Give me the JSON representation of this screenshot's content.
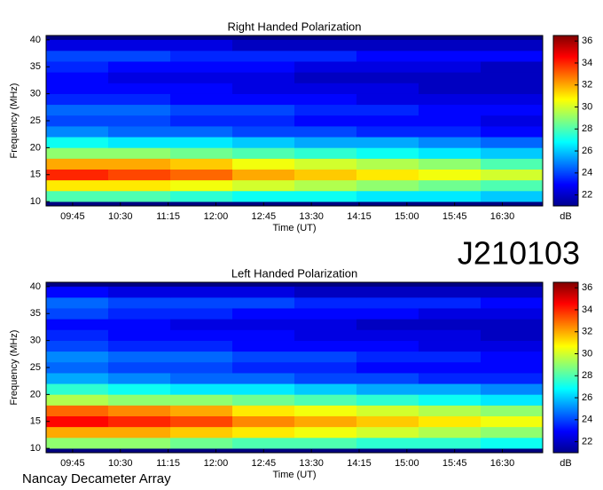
{
  "label": "J210103",
  "footer": "Nancay Decameter Array",
  "chart_data": [
    {
      "type": "heatmap",
      "title": "Right Handed Polarization",
      "xlabel": "Time (UT)",
      "ylabel": "Frequency (MHz)",
      "colorbar_label": "dB",
      "colormap": "jet",
      "xlim": [
        560,
        1028
      ],
      "ylim": [
        9.2,
        40.8
      ],
      "clim": [
        21,
        36.5
      ],
      "xticks": [
        {
          "value": 585,
          "label": "09:45"
        },
        {
          "value": 630,
          "label": "10:30"
        },
        {
          "value": 675,
          "label": "11:15"
        },
        {
          "value": 720,
          "label": "12:00"
        },
        {
          "value": 765,
          "label": "12:45"
        },
        {
          "value": 810,
          "label": "13:30"
        },
        {
          "value": 855,
          "label": "14:15"
        },
        {
          "value": 900,
          "label": "15:00"
        },
        {
          "value": 945,
          "label": "15:45"
        },
        {
          "value": 990,
          "label": "16:30"
        }
      ],
      "yticks": [
        10,
        15,
        20,
        25,
        30,
        35,
        40
      ],
      "cticks": [
        22,
        24,
        26,
        28,
        30,
        32,
        34,
        36
      ],
      "x_edges": [
        560,
        618.5,
        677,
        735.5,
        794,
        852.5,
        911,
        969.5,
        1028
      ],
      "y_edges": [
        10,
        12,
        14,
        16,
        18,
        20,
        22,
        24,
        26,
        28,
        30,
        32,
        34,
        36,
        38,
        40
      ],
      "z": [
        [
          28,
          28,
          27.5,
          27,
          27,
          26.5,
          26.5,
          26
        ],
        [
          31,
          31,
          30.5,
          30,
          29.5,
          29,
          28.5,
          28
        ],
        [
          34,
          33.5,
          33,
          32,
          31.5,
          31,
          30.5,
          30
        ],
        [
          32,
          32,
          31.5,
          30.5,
          30,
          29.5,
          29,
          28
        ],
        [
          29,
          29,
          28.5,
          28,
          27.5,
          27,
          26.5,
          26
        ],
        [
          27,
          26.5,
          26.5,
          26,
          25.5,
          25.5,
          25,
          24.5
        ],
        [
          25,
          24.5,
          24.5,
          24,
          24,
          23.5,
          23.5,
          23
        ],
        [
          24,
          24,
          23.5,
          23.5,
          23,
          23,
          23,
          22.5
        ],
        [
          24.5,
          24.5,
          24,
          24,
          23.5,
          23.5,
          23,
          23
        ],
        [
          23.5,
          23.5,
          23,
          23,
          23,
          22.5,
          22.5,
          22.5
        ],
        [
          23,
          23,
          23,
          22.5,
          22.5,
          22.5,
          22,
          22
        ],
        [
          23,
          22.5,
          22.5,
          22.5,
          22,
          22,
          22,
          22
        ],
        [
          23.5,
          23,
          23,
          23,
          22.5,
          22.5,
          22.5,
          22
        ],
        [
          24,
          24,
          23.5,
          23.5,
          23.5,
          23,
          23,
          23
        ],
        [
          22.5,
          22.5,
          22.5,
          22,
          22,
          22,
          22,
          22
        ]
      ]
    },
    {
      "type": "heatmap",
      "title": "Left Handed Polarization",
      "xlabel": "Time (UT)",
      "ylabel": "Frequency (MHz)",
      "colorbar_label": "dB",
      "colormap": "jet",
      "xlim": [
        560,
        1028
      ],
      "ylim": [
        9.2,
        40.8
      ],
      "clim": [
        21,
        36.5
      ],
      "xticks": [
        {
          "value": 585,
          "label": "09:45"
        },
        {
          "value": 630,
          "label": "10:30"
        },
        {
          "value": 675,
          "label": "11:15"
        },
        {
          "value": 720,
          "label": "12:00"
        },
        {
          "value": 765,
          "label": "12:45"
        },
        {
          "value": 810,
          "label": "13:30"
        },
        {
          "value": 855,
          "label": "14:15"
        },
        {
          "value": 900,
          "label": "15:00"
        },
        {
          "value": 945,
          "label": "15:45"
        },
        {
          "value": 990,
          "label": "16:30"
        }
      ],
      "yticks": [
        10,
        15,
        20,
        25,
        30,
        35,
        40
      ],
      "cticks": [
        22,
        24,
        26,
        28,
        30,
        32,
        34,
        36
      ],
      "x_edges": [
        560,
        618.5,
        677,
        735.5,
        794,
        852.5,
        911,
        969.5,
        1028
      ],
      "y_edges": [
        10,
        12,
        14,
        16,
        18,
        20,
        22,
        24,
        26,
        28,
        30,
        32,
        34,
        36,
        38,
        40
      ],
      "z": [
        [
          29,
          29,
          28.5,
          28,
          28,
          27.5,
          27.5,
          27
        ],
        [
          32,
          32,
          31.5,
          31,
          30.5,
          30,
          29.5,
          29
        ],
        [
          34.5,
          34,
          33.5,
          32.5,
          32,
          31.5,
          31,
          30.5
        ],
        [
          33,
          32.5,
          32,
          31,
          30.5,
          30,
          29.5,
          29
        ],
        [
          29.5,
          29,
          29,
          28.5,
          28,
          27.5,
          27,
          26.5
        ],
        [
          27.5,
          27,
          26.5,
          26.5,
          26,
          25.5,
          25.5,
          25
        ],
        [
          25.5,
          25,
          24.5,
          24.5,
          24,
          24,
          23.5,
          23.5
        ],
        [
          24.5,
          24,
          24,
          23.5,
          23.5,
          23,
          23,
          23
        ],
        [
          25,
          24.5,
          24.5,
          24,
          24,
          23.5,
          23.5,
          23
        ],
        [
          24,
          23.5,
          23.5,
          23,
          23,
          23,
          22.5,
          22.5
        ],
        [
          23.5,
          23,
          23,
          23,
          22.5,
          22.5,
          22.5,
          22
        ],
        [
          23,
          23,
          22.5,
          22.5,
          22.5,
          22,
          22,
          22
        ],
        [
          24,
          23.5,
          23.5,
          23,
          23,
          23,
          22.5,
          22.5
        ],
        [
          24.5,
          24,
          24,
          24,
          23.5,
          23.5,
          23.5,
          23
        ],
        [
          23,
          22.5,
          22.5,
          22.5,
          22,
          22,
          22,
          22
        ]
      ]
    }
  ]
}
